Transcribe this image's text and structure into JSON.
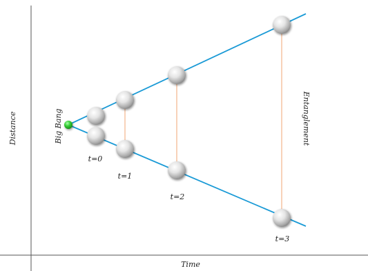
{
  "axes": {
    "x_label": "Time",
    "y_label": "Distance"
  },
  "labels": {
    "origin": "Big Bang",
    "relation": "Entanglement",
    "t0": "t=0",
    "t1": "t=1",
    "t2": "t=2",
    "t3": "t=3"
  },
  "colors": {
    "axis": "#555555",
    "trajectory": "#1a9ad6",
    "entanglement_link": "#f2b48a",
    "origin_point": "#33cc33",
    "particle": "#d6d6d6"
  }
}
